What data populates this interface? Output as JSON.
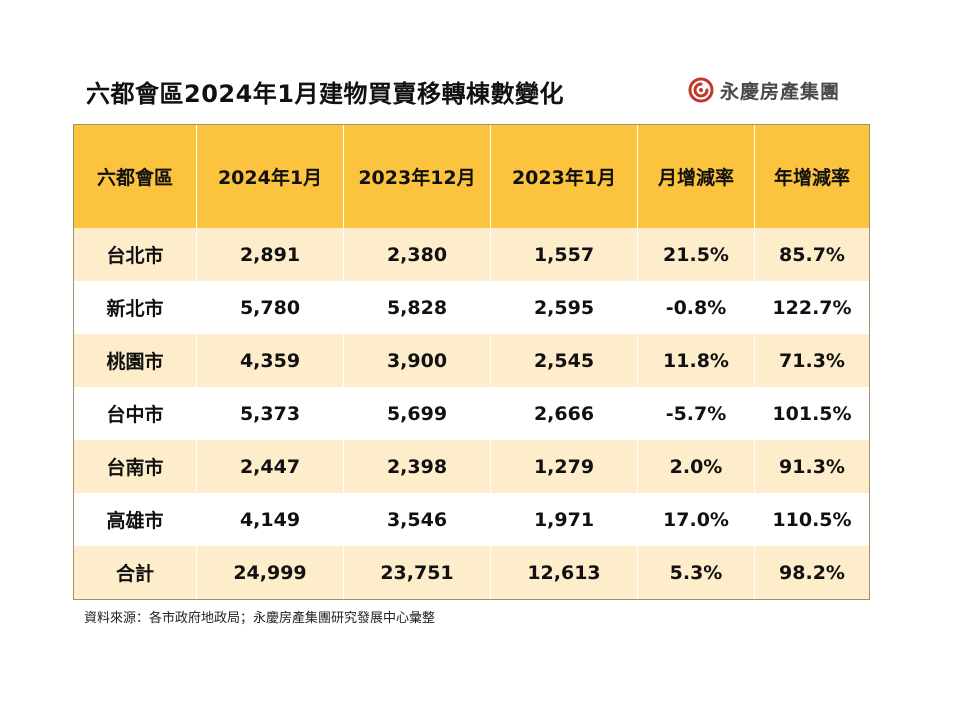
{
  "title": "六都會區2024年1月建物買賣移轉棟數變化",
  "brand": {
    "name": "永慶房產集團",
    "logo_icon": "yungching-logo-icon",
    "logo_color": "#c0392b"
  },
  "colors": {
    "header_bg": "#fcc43e",
    "row_shade": "#fdedcb",
    "row_plain": "#ffffff",
    "border": "#a09070"
  },
  "table": {
    "headers": [
      "六都會區",
      "2024年1月",
      "2023年12月",
      "2023年1月",
      "月增減率",
      "年增減率"
    ],
    "rows": [
      [
        "台北市",
        "2,891",
        "2,380",
        "1,557",
        "21.5%",
        "85.7%"
      ],
      [
        "新北市",
        "5,780",
        "5,828",
        "2,595",
        "-0.8%",
        "122.7%"
      ],
      [
        "桃園市",
        "4,359",
        "3,900",
        "2,545",
        "11.8%",
        "71.3%"
      ],
      [
        "台中市",
        "5,373",
        "5,699",
        "2,666",
        "-5.7%",
        "101.5%"
      ],
      [
        "台南市",
        "2,447",
        "2,398",
        "1,279",
        "2.0%",
        "91.3%"
      ],
      [
        "高雄市",
        "4,149",
        "3,546",
        "1,971",
        "17.0%",
        "110.5%"
      ],
      [
        "合計",
        "24,999",
        "23,751",
        "12,613",
        "5.3%",
        "98.2%"
      ]
    ]
  },
  "source": "資料來源：各市政府地政局；永慶房產集團研究發展中心彙整"
}
